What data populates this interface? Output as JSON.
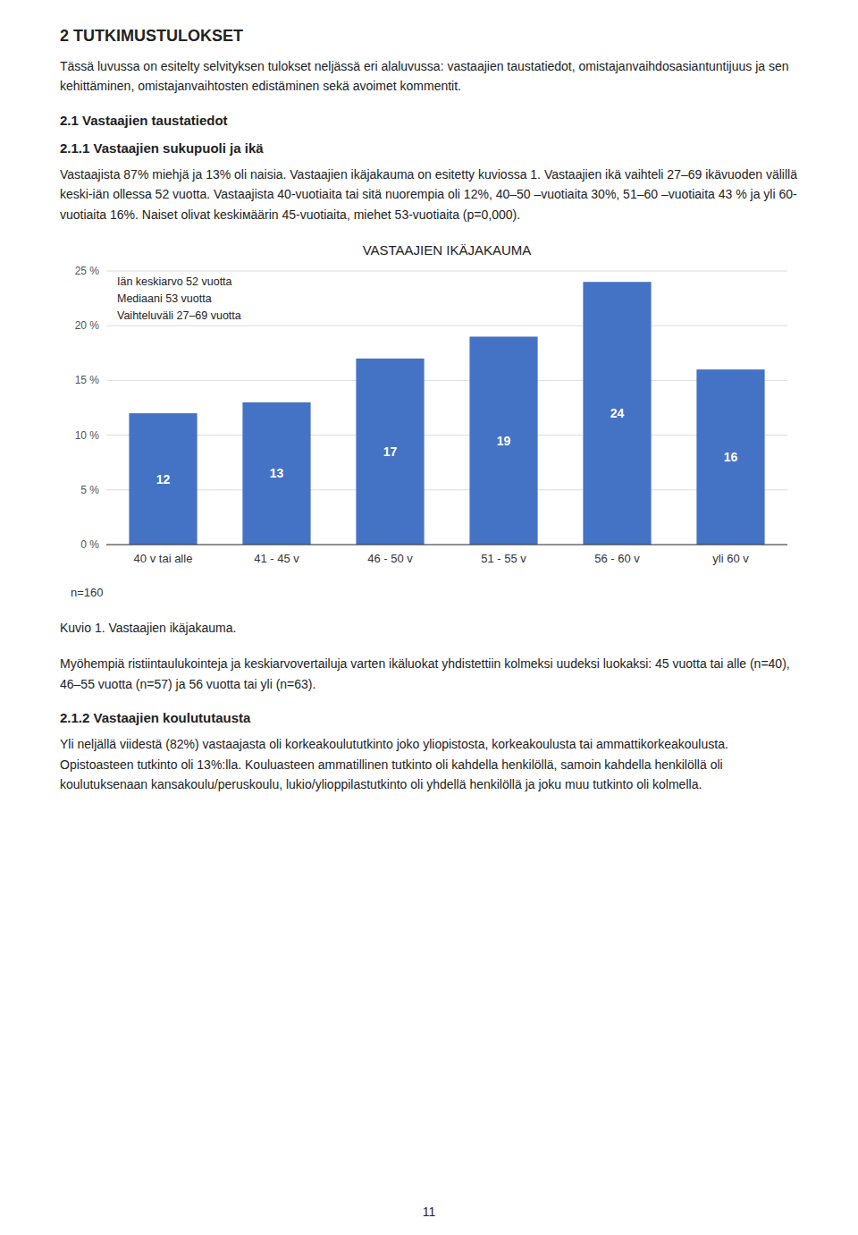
{
  "heading1": "2 TUTKIMUSTULOKSET",
  "para1": "Tässä luvussa on esitelty selvityksen tulokset neljässä eri alaluvussa: vastaajien taustatiedot, omistajanvaihdosasiantuntijuus ja sen kehittäminen, omistajanvaihtosten edistäminen sekä avoimet kommentit.",
  "heading2": "2.1 Vastaajien taustatiedot",
  "heading3": "2.1.1 Vastaajien sukupuoli ja ikä",
  "para2": "Vastaajista 87% miehjä ja 13% oli naisia. Vastaajien ikäjakauma on esitetty kuviossa 1. Vastaajien ikä vaihteli 27–69 ikävuoden välillä keski-iän ollessa 52 vuotta. Vastaajista 40-vuotiaita tai sitä nuorempia oli 12%, 40–50 –vuotiaita 30%, 51–60 –vuotiaita 43 % ja yli 60-vuotiaita 16%. Naiset olivat keskiмäärin 45-vuotiaita, miehet 53-vuotiaita (p=0,000).",
  "para3": "Myöhempiä ristiintaulukointeja ja keskiarvovertailuja varten ikäluokat yhdistettiin kolmeksi uudeksi luokaksi: 45 vuotta tai alle (n=40), 46–55 vuotta (n=57) ja 56 vuotta tai yli (n=63).",
  "heading4": "2.1.2 Vastaajien koulututausta",
  "para4": "Yli neljällä viidestä (82%) vastaajasta oli korkeakoulututkinto joko yliopistosta, korkeakoulusta tai ammattikorkeakoulusta. Opistoasteen tutkinto oli 13%:lla. Kouluasteen ammatillinen tutkinto oli kahdella henkilöllä, samoin kahdella henkilöllä oli koulutuksenaan kansakoulu/peruskoulu, lukio/ylioppilastutkinto oli yhdellä henkilöllä ja joku muu tutkinto oli kolmella.",
  "page_number": "11",
  "chart_data": {
    "type": "bar",
    "title": "VASTAAJIEN IKÄJAKAUMA",
    "categories": [
      "40 v tai alle",
      "41 - 45 v",
      "46 - 50 v",
      "51 - 55 v",
      "56 - 60 v",
      "yli 60 v"
    ],
    "values": [
      12,
      13,
      17,
      19,
      24,
      16
    ],
    "color": "#4472C4",
    "ylim": [
      0,
      25
    ],
    "yticks": [
      {
        "value": 0,
        "label": "0 %"
      },
      {
        "value": 5,
        "label": "5 %"
      },
      {
        "value": 10,
        "label": "10 %"
      },
      {
        "value": 15,
        "label": "15 %"
      },
      {
        "value": 20,
        "label": "20 %"
      },
      {
        "value": 25,
        "label": "25 %"
      }
    ],
    "grid": true,
    "data_labels": true,
    "annotation": "Iän keskiarvo 52 vuotta\nMediaani 53 vuotta\nVaihteluväli  27–69 vuotta",
    "footnote": "n=160",
    "caption": "Kuvio 1. Vastaajien ikäjakauma."
  }
}
